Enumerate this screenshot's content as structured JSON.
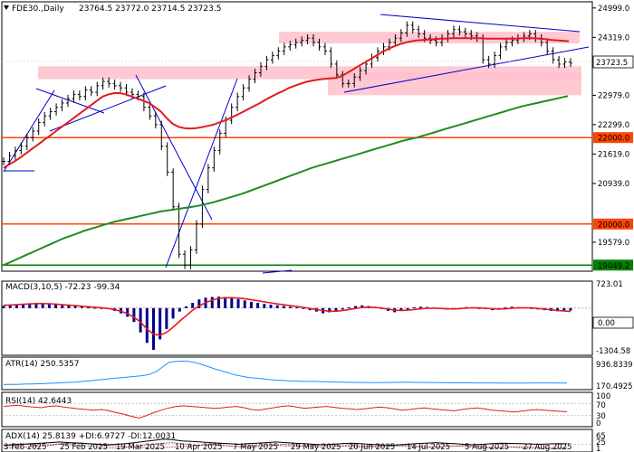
{
  "chart_data": {
    "type": "line",
    "symbol_info": "FDE30.,Daily",
    "ohlc_text": "23764.5 23772.0 23714.5 23723.5",
    "current_price": "23723.5",
    "x_tick_labels": [
      "3 Feb 2025",
      "25 Feb 2025",
      "19 Mar 2025",
      "10 Apr 2025",
      "7 May 2025",
      "29 May 2025",
      "20 Jun 2025",
      "14 Jul 2025",
      "5 Aug 2025",
      "27 Aug 2025"
    ],
    "y_tick_labels": [
      "24999.0",
      "24319.0",
      "22979.0",
      "22299.0",
      "21619.0",
      "20939.0",
      "19579.0"
    ],
    "price_range": [
      18950,
      25100
    ],
    "levels": [
      {
        "value": 22000,
        "label": "22000.0",
        "color": "#ff4500"
      },
      {
        "value": 20000,
        "label": "20000.0",
        "color": "#ff4500"
      },
      {
        "value": 19049.2,
        "label": "19049.2",
        "color": "#008000"
      }
    ],
    "zones": [
      {
        "from": 23350,
        "to": 23650
      },
      {
        "from": 24180,
        "to": 24450
      },
      {
        "from": 22980,
        "to": 23500
      }
    ],
    "price_series": {
      "values": [
        21450,
        21580,
        21700,
        21800,
        22000,
        22150,
        22350,
        22500,
        22600,
        22700,
        22800,
        22900,
        23000,
        22950,
        23100,
        23050,
        23200,
        23300,
        23250,
        23200,
        23150,
        23050,
        23000,
        22950,
        22700,
        22500,
        22300,
        21800,
        21200,
        20400,
        19300,
        19050,
        19400,
        20000,
        20800,
        21300,
        21700,
        22100,
        22400,
        22700,
        22950,
        23150,
        23350,
        23500,
        23650,
        23800,
        23900,
        24000,
        24100,
        24150,
        24200,
        24250,
        24300,
        24200,
        24100,
        24000,
        23700,
        23450,
        23250,
        23250,
        23400,
        23550,
        23700,
        23850,
        24000,
        24100,
        24200,
        24300,
        24420,
        24600,
        24500,
        24400,
        24300,
        24250,
        24200,
        24300,
        24400,
        24500,
        24450,
        24400,
        24350,
        24300,
        23800,
        23700,
        23900,
        24100,
        24200,
        24250,
        24300,
        24350,
        24400,
        24300,
        24200,
        24000,
        23800,
        23700,
        23750,
        23723.5
      ]
    },
    "ema_red": {
      "values": [
        21300,
        21380,
        21460,
        21550,
        21650,
        21750,
        21850,
        21950,
        22050,
        22150,
        22250,
        22350,
        22450,
        22550,
        22650,
        22750,
        22850,
        22950,
        23000,
        23030,
        23030,
        23000,
        22950,
        22900,
        22850,
        22800,
        22700,
        22600,
        22450,
        22320,
        22250,
        22220,
        22210,
        22220,
        22240,
        22270,
        22300,
        22350,
        22400,
        22460,
        22520,
        22590,
        22660,
        22730,
        22800,
        22880,
        22950,
        23020,
        23080,
        23150,
        23200,
        23250,
        23290,
        23320,
        23340,
        23360,
        23370,
        23380,
        23420,
        23500,
        23580,
        23660,
        23740,
        23820,
        23900,
        23980,
        24050,
        24110,
        24160,
        24200,
        24230,
        24250,
        24260,
        24270,
        24280,
        24290,
        24290,
        24300,
        24300,
        24300,
        24300,
        24300,
        24300,
        24290,
        24290,
        24290,
        24290,
        24290,
        24290,
        24300,
        24300,
        24300,
        24290,
        24280,
        24260,
        24250,
        24240,
        24230
      ]
    },
    "ema_green": {
      "values": [
        19050,
        19110,
        19170,
        19230,
        19290,
        19350,
        19410,
        19470,
        19530,
        19590,
        19650,
        19700,
        19750,
        19800,
        19850,
        19890,
        19930,
        19970,
        20010,
        20050,
        20080,
        20110,
        20140,
        20170,
        20200,
        20230,
        20260,
        20290,
        20310,
        20330,
        20350,
        20370,
        20390,
        20410,
        20440,
        20470,
        20500,
        20540,
        20580,
        20620,
        20660,
        20700,
        20750,
        20800,
        20850,
        20900,
        20950,
        21000,
        21050,
        21100,
        21150,
        21200,
        21250,
        21300,
        21340,
        21380,
        21420,
        21460,
        21500,
        21540,
        21580,
        21620,
        21660,
        21700,
        21740,
        21780,
        21820,
        21860,
        21900,
        21940,
        21970,
        22000,
        22040,
        22080,
        22120,
        22160,
        22200,
        22240,
        22280,
        22320,
        22360,
        22400,
        22440,
        22480,
        22520,
        22560,
        22600,
        22640,
        22680,
        22720,
        22750,
        22780,
        22810,
        22840,
        22870,
        22900,
        22930,
        22960
      ]
    },
    "macd": {
      "label": "MACD(3,10,5) -72.23 -99.34",
      "ticks": [
        "723.01",
        "0.00",
        "-1304.58"
      ],
      "range": [
        -1304.58,
        723.01
      ],
      "hist": [
        60,
        80,
        90,
        100,
        120,
        140,
        150,
        140,
        120,
        100,
        80,
        60,
        40,
        20,
        10,
        0,
        -30,
        -80,
        -150,
        -250,
        -400,
        -700,
        -1000,
        -1200,
        -900,
        -600,
        -300,
        -100,
        50,
        150,
        250,
        300,
        320,
        330,
        320,
        300,
        260,
        220,
        180,
        150,
        120,
        100,
        80,
        60,
        40,
        20,
        -20,
        -60,
        -100,
        -150,
        -120,
        -80,
        -40,
        20,
        60,
        80,
        60,
        30,
        -20,
        -80,
        -120,
        -80,
        -40,
        20,
        40,
        30,
        10,
        -20,
        -40,
        -30,
        10,
        30,
        20,
        -10,
        -30,
        -60,
        -40,
        20,
        40,
        30,
        20,
        -10,
        -40,
        -60,
        -80,
        -90,
        -80,
        -70
      ],
      "signal": [
        80,
        90,
        100,
        110,
        120,
        130,
        130,
        125,
        115,
        100,
        85,
        70,
        55,
        40,
        25,
        10,
        -10,
        -40,
        -90,
        -160,
        -260,
        -400,
        -600,
        -750,
        -780,
        -700,
        -550,
        -380,
        -220,
        -60,
        60,
        160,
        230,
        280,
        300,
        300,
        290,
        270,
        240,
        210,
        180,
        150,
        120,
        95,
        70,
        45,
        20,
        -10,
        -40,
        -70,
        -90,
        -90,
        -70,
        -40,
        -10,
        20,
        30,
        20,
        0,
        -30,
        -60,
        -70,
        -60,
        -40,
        -20,
        -5,
        0,
        -10,
        -20,
        -25,
        -15,
        0,
        10,
        5,
        -5,
        -20,
        -30,
        -20,
        -5,
        5,
        10,
        5,
        -10,
        -30,
        -50,
        -70,
        -80,
        -99.34
      ]
    },
    "atr": {
      "label": "ATR(14) 250.5357",
      "ticks": [
        "936.8339",
        "170.4925"
      ],
      "range": [
        100,
        1000
      ],
      "values": [
        200,
        210,
        205,
        215,
        220,
        225,
        230,
        240,
        250,
        260,
        270,
        280,
        300,
        320,
        340,
        360,
        380,
        400,
        420,
        440,
        460,
        480,
        520,
        600,
        750,
        900,
        920,
        930,
        920,
        880,
        820,
        750,
        680,
        620,
        560,
        500,
        460,
        420,
        400,
        380,
        360,
        340,
        330,
        320,
        310,
        300,
        300,
        300,
        290,
        285,
        280,
        275,
        270,
        270,
        265,
        260,
        260,
        262,
        265,
        270,
        272,
        275,
        270,
        268,
        265,
        262,
        260,
        258,
        256,
        255,
        254,
        253,
        252,
        251,
        251,
        250,
        250,
        250,
        250,
        250,
        251,
        251,
        251,
        251,
        250,
        250.5357
      ]
    },
    "rsi": {
      "label": "RSI(14) 42.6443",
      "ticks": [
        "100",
        "70",
        "30",
        "0"
      ],
      "range": [
        0,
        100
      ],
      "values": [
        60,
        62,
        64,
        60,
        58,
        56,
        60,
        62,
        58,
        55,
        52,
        50,
        48,
        50,
        46,
        40,
        35,
        28,
        22,
        30,
        40,
        48,
        55,
        60,
        62,
        60,
        58,
        56,
        54,
        55,
        58,
        60,
        56,
        50,
        48,
        52,
        56,
        60,
        62,
        58,
        54,
        56,
        58,
        60,
        57,
        54,
        52,
        50,
        52,
        55,
        58,
        56,
        52,
        48,
        50,
        53,
        55,
        52,
        50,
        48,
        46,
        50,
        53,
        55,
        52,
        48,
        46,
        44,
        42,
        45,
        48,
        50,
        48,
        46,
        44,
        42.6443
      ]
    },
    "adx": {
      "label": "ADX(14) 25.8139 +DI:6.9727 -DI:12.0031",
      "ticks": [
        "65",
        "25",
        "1"
      ],
      "range": [
        0,
        70
      ],
      "adx": [
        20,
        22,
        24,
        26,
        28,
        30,
        32,
        30,
        28,
        26,
        24,
        22,
        24,
        26,
        30,
        34,
        38,
        42,
        40,
        36,
        34,
        32,
        30,
        28,
        26,
        24,
        26,
        28,
        30,
        32,
        30,
        28,
        26,
        24,
        22,
        24,
        26,
        28,
        26,
        24,
        22,
        20,
        22,
        24,
        26,
        28,
        30,
        28,
        26,
        24,
        22,
        24,
        26,
        28,
        27,
        26,
        25,
        24,
        25,
        26,
        25.8139
      ],
      "plus_di": [
        20,
        24,
        26,
        22,
        18,
        20,
        24,
        22,
        20,
        18,
        14,
        12,
        10,
        12,
        16,
        20,
        24,
        28,
        30,
        26,
        22,
        20,
        24,
        22,
        18,
        16,
        14,
        16,
        18,
        22,
        24,
        20,
        18,
        16,
        14,
        16,
        18,
        20,
        18,
        16,
        14,
        16,
        18,
        16,
        14,
        12,
        14,
        16,
        18,
        16,
        14,
        12,
        10,
        12,
        14,
        12,
        10,
        9,
        8,
        7.5,
        6.9727
      ],
      "minus_di": [
        10,
        12,
        14,
        16,
        18,
        22,
        26,
        28,
        30,
        26,
        22,
        20,
        18,
        16,
        14,
        12,
        10,
        12,
        14,
        16,
        18,
        20,
        22,
        20,
        18,
        16,
        18,
        20,
        22,
        20,
        18,
        16,
        18,
        20,
        22,
        20,
        18,
        16,
        14,
        16,
        18,
        20,
        22,
        20,
        18,
        16,
        14,
        16,
        18,
        20,
        18,
        16,
        14,
        12,
        14,
        16,
        14,
        13,
        12.5,
        12.2,
        12.0031
      ]
    }
  }
}
